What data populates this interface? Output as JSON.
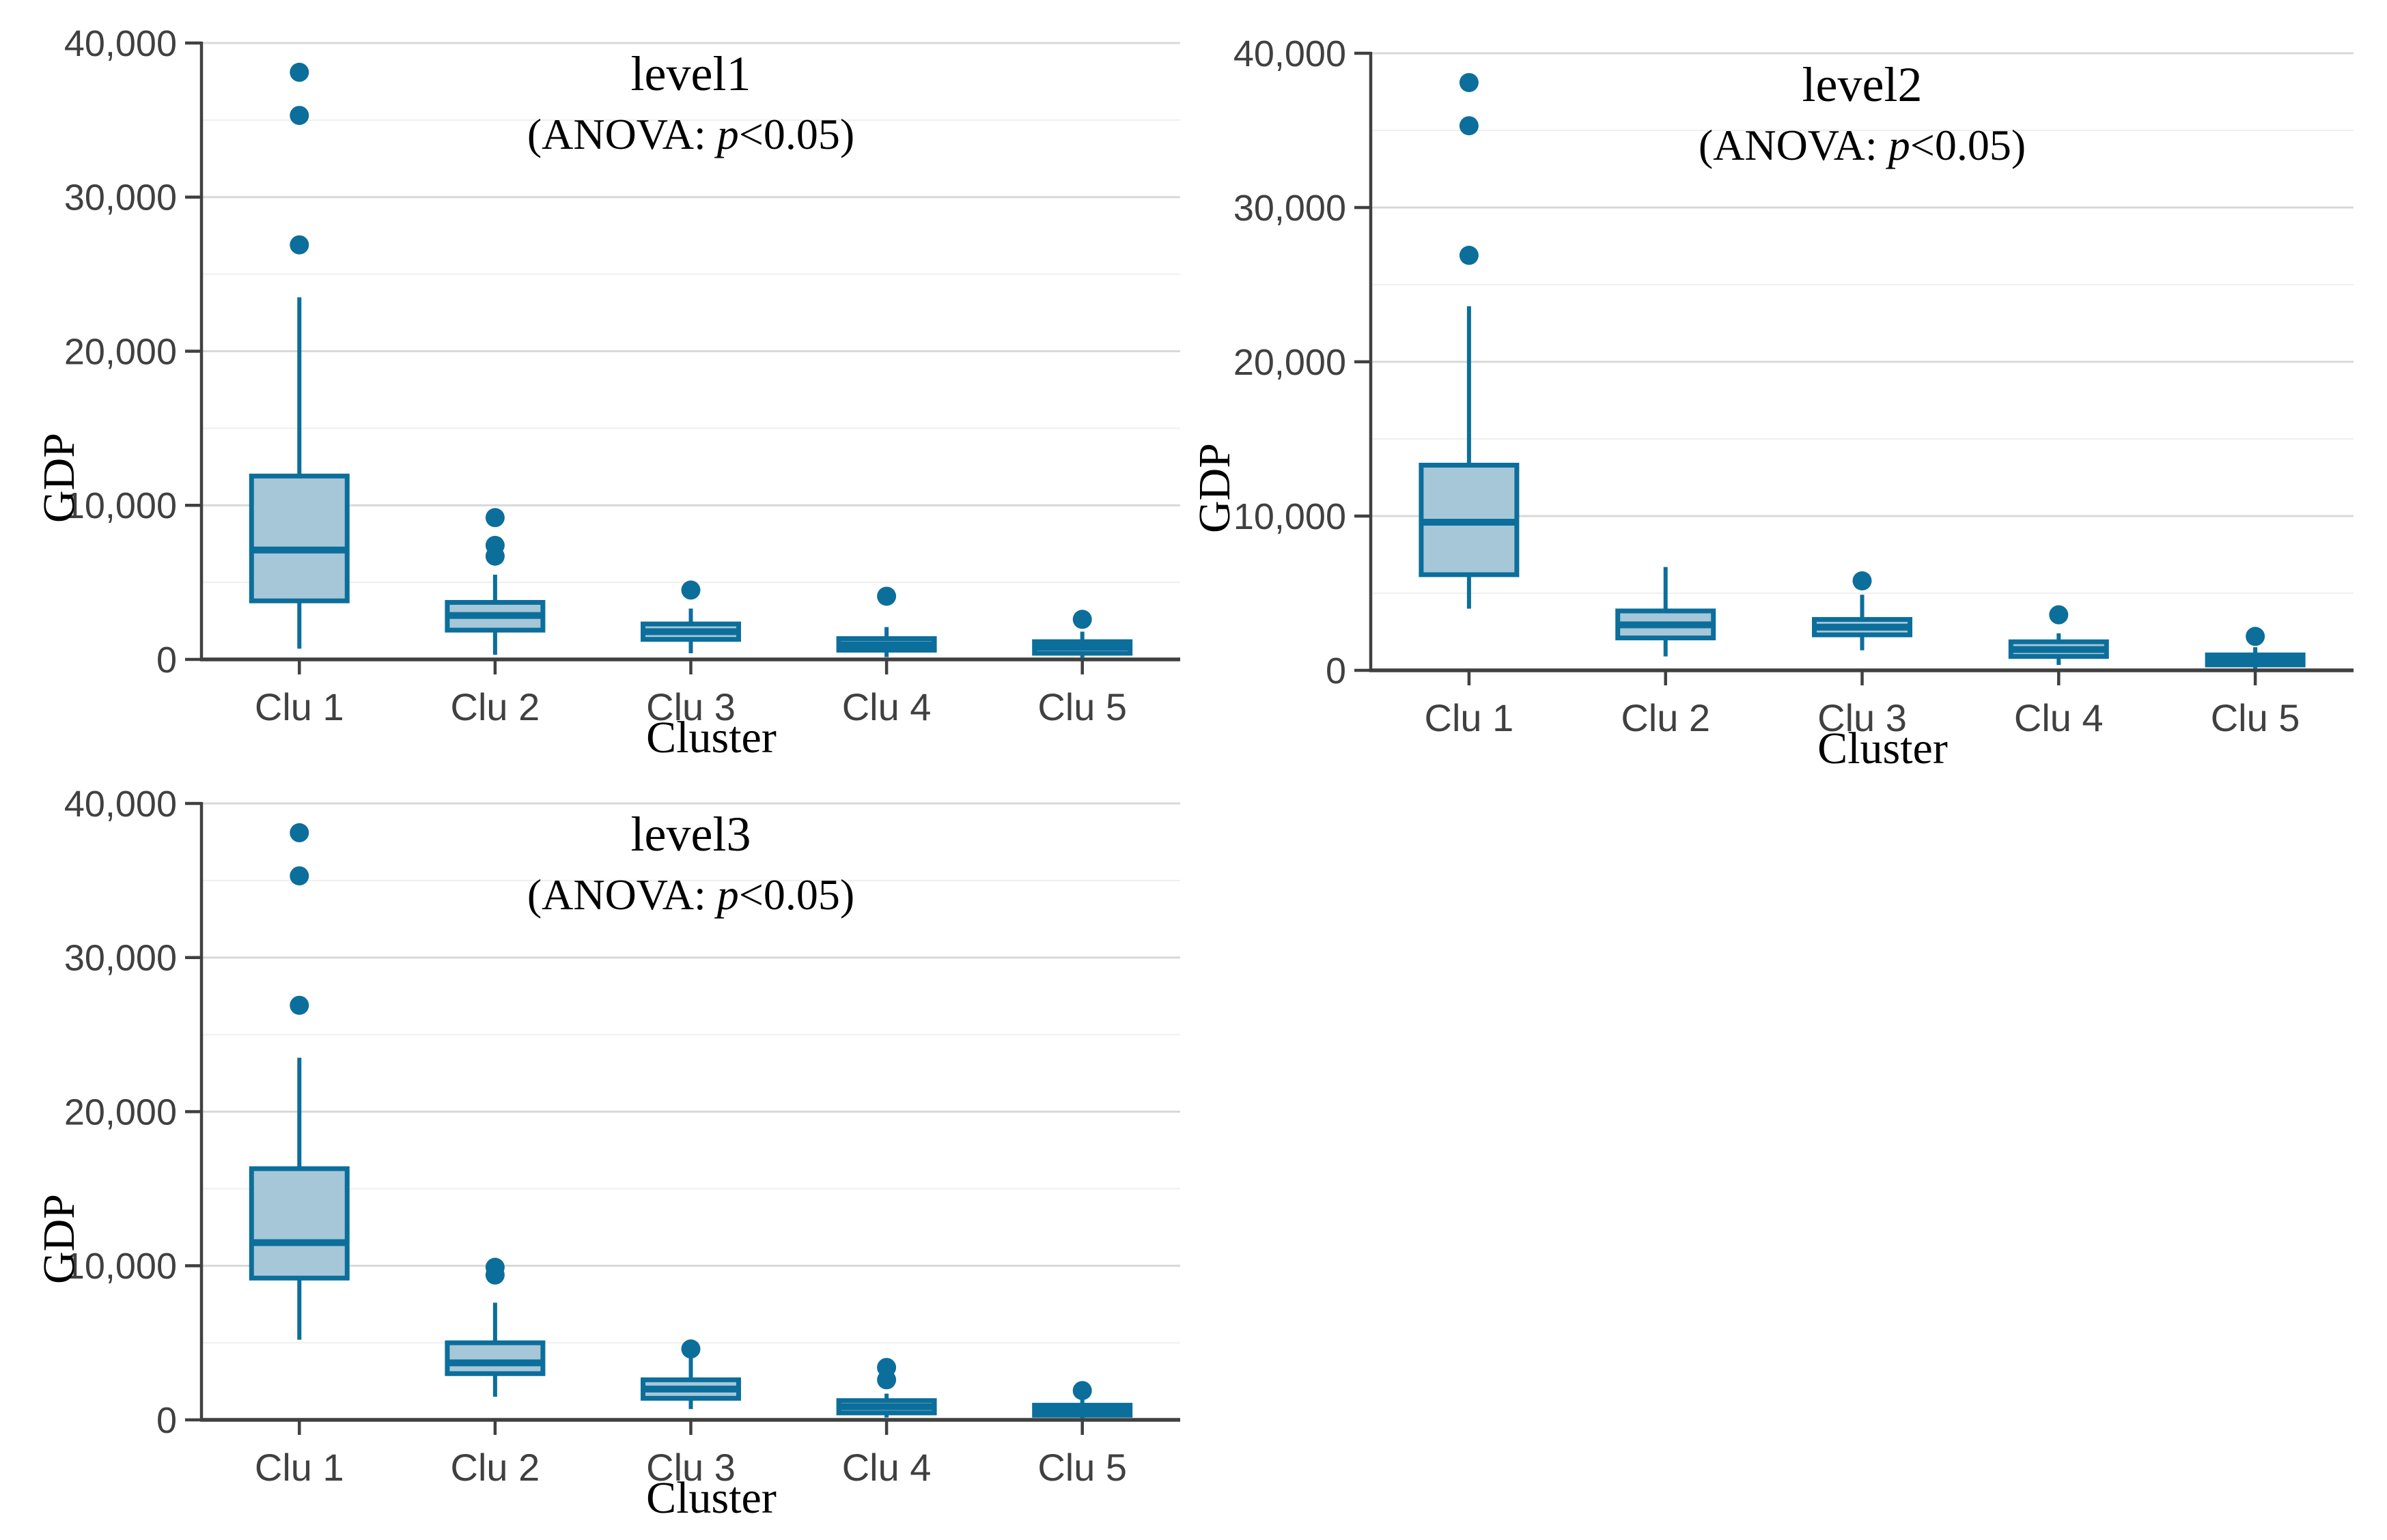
{
  "figure": {
    "background": "#ffffff",
    "colors": {
      "box_fill": "#a6c7d8",
      "box_stroke": "#0c6e9b",
      "outlier": "#0c6e9b",
      "grid_major": "#d8d8d8",
      "grid_minor": "#efefef",
      "axis_line": "#404040",
      "tick_text": "#404040",
      "title_text": "#000000"
    }
  },
  "chart_data": [
    {
      "type": "box",
      "title": "level1",
      "subtitle": {
        "prefix": "(ANOVA: ",
        "italic": "p",
        "suffix": "<0.05)"
      },
      "xlabel": "Cluster",
      "ylabel": "GDP",
      "ylim": [
        0,
        40000
      ],
      "grid": "on",
      "legend": "none",
      "yticks": [
        {
          "v": 0,
          "label": "0"
        },
        {
          "v": 10000,
          "label": "10,000"
        },
        {
          "v": 20000,
          "label": "20,000"
        },
        {
          "v": 30000,
          "label": "30,000"
        },
        {
          "v": 40000,
          "label": "40,000"
        }
      ],
      "categories": [
        "Clu 1",
        "Clu 2",
        "Clu 3",
        "Clu 4",
        "Clu 5"
      ],
      "boxes": [
        {
          "low": 700,
          "q1": 3800,
          "med": 7100,
          "q3": 11900,
          "high": 23500,
          "outliers": [
            26900,
            35300,
            38100
          ]
        },
        {
          "low": 300,
          "q1": 1900,
          "med": 2850,
          "q3": 3700,
          "high": 5500,
          "outliers": [
            6700,
            7400,
            9200
          ]
        },
        {
          "low": 400,
          "q1": 1300,
          "med": 1800,
          "q3": 2300,
          "high": 3300,
          "outliers": [
            4500
          ]
        },
        {
          "low": 150,
          "q1": 600,
          "med": 950,
          "q3": 1350,
          "high": 2100,
          "outliers": [
            4100
          ]
        },
        {
          "low": 100,
          "q1": 400,
          "med": 800,
          "q3": 1150,
          "high": 1800,
          "outliers": [
            2600
          ]
        }
      ]
    },
    {
      "type": "box",
      "title": "level2",
      "subtitle": {
        "prefix": "(ANOVA: ",
        "italic": "p",
        "suffix": "<0.05)"
      },
      "xlabel": "Cluster",
      "ylabel": "GDP",
      "ylim": [
        0,
        40000
      ],
      "grid": "on",
      "legend": "none",
      "yticks": [
        {
          "v": 0,
          "label": "0"
        },
        {
          "v": 10000,
          "label": "10,000"
        },
        {
          "v": 20000,
          "label": "20,000"
        },
        {
          "v": 30000,
          "label": "30,000"
        },
        {
          "v": 40000,
          "label": "40,000"
        }
      ],
      "categories": [
        "Clu 1",
        "Clu 2",
        "Clu 3",
        "Clu 4",
        "Clu 5"
      ],
      "boxes": [
        {
          "low": 4000,
          "q1": 6200,
          "med": 9600,
          "q3": 13300,
          "high": 23600,
          "outliers": [
            26900,
            35300,
            38100
          ]
        },
        {
          "low": 900,
          "q1": 2100,
          "med": 2950,
          "q3": 3850,
          "high": 6700,
          "outliers": []
        },
        {
          "low": 1300,
          "q1": 2300,
          "med": 2800,
          "q3": 3300,
          "high": 4900,
          "outliers": [
            5800
          ]
        },
        {
          "low": 350,
          "q1": 900,
          "med": 1350,
          "q3": 1850,
          "high": 2400,
          "outliers": [
            3600
          ]
        },
        {
          "low": 100,
          "q1": 350,
          "med": 650,
          "q3": 1000,
          "high": 1500,
          "outliers": [
            2200
          ]
        }
      ]
    },
    {
      "type": "box",
      "title": "level3",
      "subtitle": {
        "prefix": "(ANOVA: ",
        "italic": "p",
        "suffix": "<0.05)"
      },
      "xlabel": "Cluster",
      "ylabel": "GDP",
      "ylim": [
        0,
        40000
      ],
      "grid": "on",
      "legend": "none",
      "yticks": [
        {
          "v": 0,
          "label": "0"
        },
        {
          "v": 10000,
          "label": "10,000"
        },
        {
          "v": 20000,
          "label": "20,000"
        },
        {
          "v": 30000,
          "label": "30,000"
        },
        {
          "v": 40000,
          "label": "40,000"
        }
      ],
      "categories": [
        "Clu 1",
        "Clu 2",
        "Clu 3",
        "Clu 4",
        "Clu 5"
      ],
      "boxes": [
        {
          "low": 5200,
          "q1": 9200,
          "med": 11500,
          "q3": 16300,
          "high": 23500,
          "outliers": [
            26900,
            35300,
            38100
          ]
        },
        {
          "low": 1500,
          "q1": 3000,
          "med": 3700,
          "q3": 5000,
          "high": 7600,
          "outliers": [
            9400,
            9900
          ]
        },
        {
          "low": 700,
          "q1": 1400,
          "med": 2000,
          "q3": 2600,
          "high": 4000,
          "outliers": [
            4600
          ]
        },
        {
          "low": 150,
          "q1": 450,
          "med": 850,
          "q3": 1250,
          "high": 1700,
          "outliers": [
            2600,
            3400
          ]
        },
        {
          "low": 100,
          "q1": 300,
          "med": 600,
          "q3": 950,
          "high": 1400,
          "outliers": [
            1900
          ]
        }
      ]
    }
  ]
}
